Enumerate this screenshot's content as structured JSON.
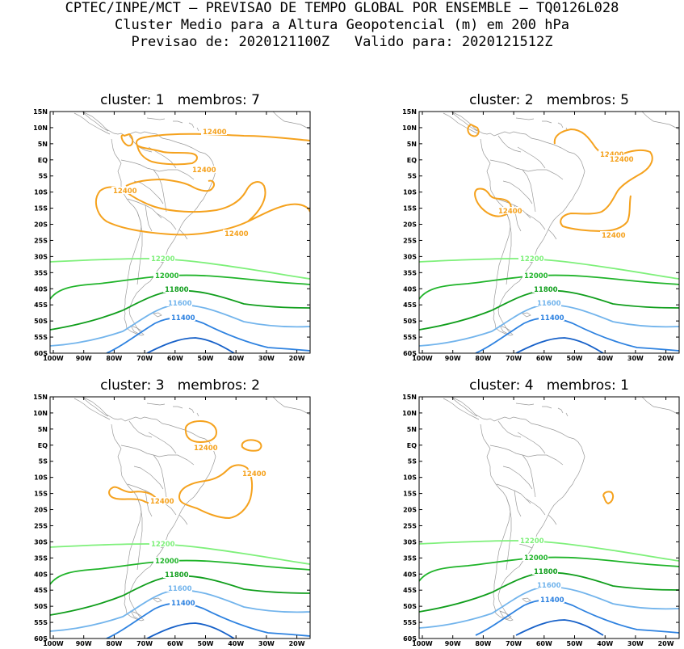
{
  "header": {
    "line1": "CPTEC/INPE/MCT – PREVISAO DE TEMPO GLOBAL POR ENSEMBLE – TQ0126L028",
    "line2": "Cluster Medio para a Altura Geopotencial (m) em 200 hPa",
    "line3": "Previsao de: 2020121100Z   Valido para: 2020121512Z"
  },
  "axes": {
    "lat_labels": [
      "15N",
      "10N",
      "5N",
      "EQ",
      "5S",
      "10S",
      "15S",
      "20S",
      "25S",
      "30S",
      "35S",
      "40S",
      "45S",
      "50S",
      "55S",
      "60S"
    ],
    "lon_labels": [
      "100W",
      "90W",
      "80W",
      "70W",
      "60W",
      "50W",
      "40W",
      "30W",
      "20W"
    ]
  },
  "colors": {
    "c12400": "#f5a21e",
    "c12200": "#7ef07a",
    "c12000": "#20b42a",
    "c11800": "#109e1c",
    "c11600": "#72b4ec",
    "c11400": "#2e82e0",
    "c11200": "#1660c8",
    "coast": "#9a9a9a"
  },
  "panels": [
    {
      "title": "cluster: 1   membros: 7",
      "labels": {
        "l12400": "12400",
        "l12200": "12200",
        "l12000": "12000",
        "l11800": "11800",
        "l11600": "11600",
        "l11400": "11400"
      }
    },
    {
      "title": "cluster: 2   membros: 5",
      "labels": {
        "l12400": "12400",
        "l12200": "12200",
        "l12000": "12000",
        "l11800": "11800",
        "l11600": "11600",
        "l11400": "11400"
      }
    },
    {
      "title": "cluster: 3   membros: 2",
      "labels": {
        "l12400": "12400",
        "l12200": "12200",
        "l12000": "12000",
        "l11800": "11800",
        "l11600": "11600",
        "l11400": "11400"
      }
    },
    {
      "title": "cluster: 4   membros: 1",
      "labels": {
        "l12200": "12200",
        "l12000": "12000",
        "l11800": "11800",
        "l11600": "11600",
        "l11400": "11400"
      }
    }
  ]
}
